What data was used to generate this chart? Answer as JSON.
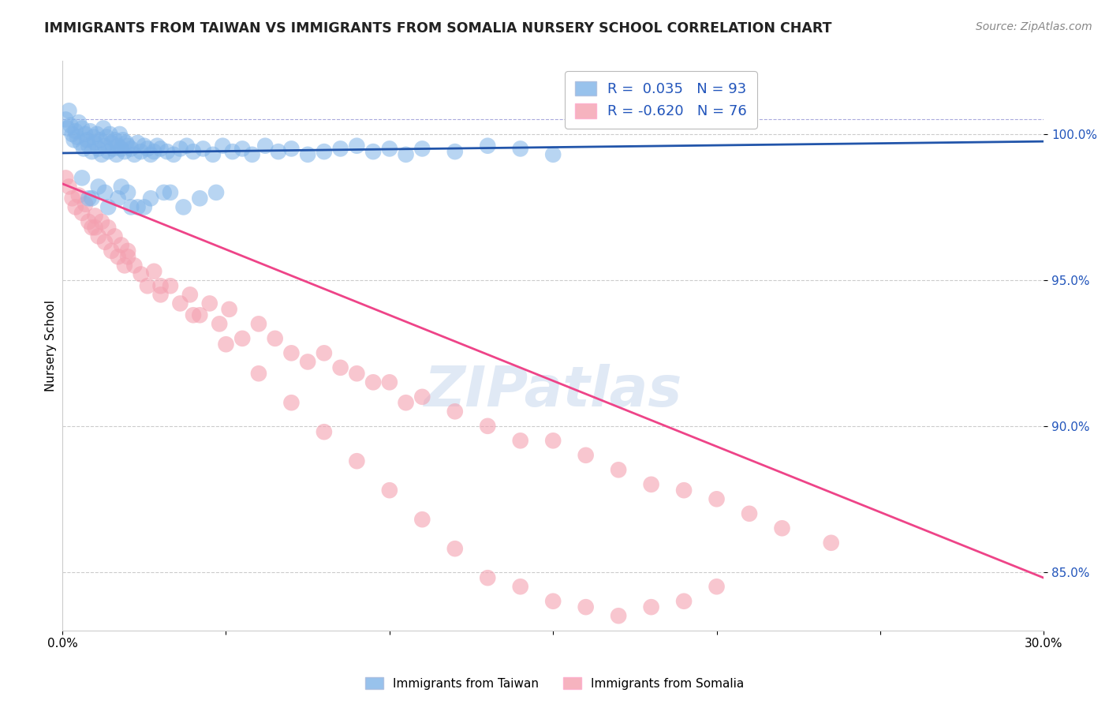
{
  "title": "IMMIGRANTS FROM TAIWAN VS IMMIGRANTS FROM SOMALIA NURSERY SCHOOL CORRELATION CHART",
  "source": "Source: ZipAtlas.com",
  "ylabel": "Nursery School",
  "xlim": [
    0.0,
    30.0
  ],
  "ylim": [
    83.0,
    102.5
  ],
  "xticks": [
    0.0,
    5.0,
    10.0,
    15.0,
    20.0,
    25.0,
    30.0
  ],
  "xticklabels": [
    "0.0%",
    "",
    "",
    "",
    "",
    "",
    "30.0%"
  ],
  "ytick_positions": [
    85.0,
    90.0,
    95.0,
    100.0
  ],
  "ytick_labels": [
    "85.0%",
    "90.0%",
    "95.0%",
    "100.0%"
  ],
  "taiwan_color": "#7FB3E8",
  "somalia_color": "#F4A0B0",
  "taiwan_line_color": "#2255AA",
  "somalia_line_color": "#EE4488",
  "taiwan_R": 0.035,
  "taiwan_N": 93,
  "somalia_R": -0.62,
  "somalia_N": 76,
  "watermark": "ZIPatlas",
  "taiwan_scatter_x": [
    0.1,
    0.15,
    0.2,
    0.25,
    0.3,
    0.35,
    0.4,
    0.45,
    0.5,
    0.55,
    0.6,
    0.65,
    0.7,
    0.75,
    0.8,
    0.85,
    0.9,
    0.95,
    1.0,
    1.05,
    1.1,
    1.15,
    1.2,
    1.25,
    1.3,
    1.35,
    1.4,
    1.45,
    1.5,
    1.55,
    1.6,
    1.65,
    1.7,
    1.75,
    1.8,
    1.85,
    1.9,
    1.95,
    2.0,
    2.1,
    2.2,
    2.3,
    2.4,
    2.5,
    2.6,
    2.7,
    2.8,
    2.9,
    3.0,
    3.2,
    3.4,
    3.6,
    3.8,
    4.0,
    4.3,
    4.6,
    4.9,
    5.2,
    5.5,
    5.8,
    6.2,
    6.6,
    7.0,
    7.5,
    8.0,
    8.5,
    9.0,
    9.5,
    10.0,
    10.5,
    11.0,
    12.0,
    13.0,
    14.0,
    15.0,
    3.1,
    2.5,
    1.8,
    0.9,
    1.3,
    2.1,
    0.6,
    0.8,
    1.1,
    1.4,
    1.7,
    2.0,
    2.3,
    2.7,
    3.3,
    3.7,
    4.2,
    4.7
  ],
  "taiwan_scatter_y": [
    100.5,
    100.2,
    100.8,
    100.3,
    100.0,
    99.8,
    100.1,
    99.9,
    100.4,
    99.7,
    100.2,
    99.5,
    100.0,
    99.8,
    99.6,
    100.1,
    99.4,
    99.9,
    99.7,
    100.0,
    99.5,
    99.8,
    99.3,
    100.2,
    99.6,
    99.9,
    99.4,
    100.0,
    99.7,
    99.5,
    99.8,
    99.3,
    99.6,
    100.0,
    99.5,
    99.8,
    99.4,
    99.7,
    99.6,
    99.5,
    99.3,
    99.7,
    99.4,
    99.6,
    99.5,
    99.3,
    99.4,
    99.6,
    99.5,
    99.4,
    99.3,
    99.5,
    99.6,
    99.4,
    99.5,
    99.3,
    99.6,
    99.4,
    99.5,
    99.3,
    99.6,
    99.4,
    99.5,
    99.3,
    99.4,
    99.5,
    99.6,
    99.4,
    99.5,
    99.3,
    99.5,
    99.4,
    99.6,
    99.5,
    99.3,
    98.0,
    97.5,
    98.2,
    97.8,
    98.0,
    97.5,
    98.5,
    97.8,
    98.2,
    97.5,
    97.8,
    98.0,
    97.5,
    97.8,
    98.0,
    97.5,
    97.8,
    98.0
  ],
  "somalia_scatter_x": [
    0.1,
    0.2,
    0.3,
    0.4,
    0.5,
    0.6,
    0.7,
    0.8,
    0.9,
    1.0,
    1.1,
    1.2,
    1.3,
    1.4,
    1.5,
    1.6,
    1.7,
    1.8,
    1.9,
    2.0,
    2.2,
    2.4,
    2.6,
    2.8,
    3.0,
    3.3,
    3.6,
    3.9,
    4.2,
    4.5,
    4.8,
    5.1,
    5.5,
    6.0,
    6.5,
    7.0,
    7.5,
    8.0,
    8.5,
    9.0,
    9.5,
    10.0,
    10.5,
    11.0,
    12.0,
    13.0,
    14.0,
    15.0,
    16.0,
    17.0,
    18.0,
    19.0,
    20.0,
    21.0,
    22.0,
    23.5,
    1.0,
    2.0,
    3.0,
    4.0,
    5.0,
    6.0,
    7.0,
    8.0,
    9.0,
    10.0,
    11.0,
    12.0,
    13.0,
    14.0,
    15.0,
    16.0,
    17.0,
    18.0,
    19.0,
    20.0
  ],
  "somalia_scatter_y": [
    98.5,
    98.2,
    97.8,
    97.5,
    97.9,
    97.3,
    97.6,
    97.0,
    96.8,
    97.2,
    96.5,
    97.0,
    96.3,
    96.8,
    96.0,
    96.5,
    95.8,
    96.2,
    95.5,
    96.0,
    95.5,
    95.2,
    94.8,
    95.3,
    94.5,
    94.8,
    94.2,
    94.5,
    93.8,
    94.2,
    93.5,
    94.0,
    93.0,
    93.5,
    93.0,
    92.5,
    92.2,
    92.5,
    92.0,
    91.8,
    91.5,
    91.5,
    90.8,
    91.0,
    90.5,
    90.0,
    89.5,
    89.5,
    89.0,
    88.5,
    88.0,
    87.8,
    87.5,
    87.0,
    86.5,
    86.0,
    96.8,
    95.8,
    94.8,
    93.8,
    92.8,
    91.8,
    90.8,
    89.8,
    88.8,
    87.8,
    86.8,
    85.8,
    84.8,
    84.5,
    84.0,
    83.8,
    83.5,
    83.8,
    84.0,
    84.5
  ]
}
